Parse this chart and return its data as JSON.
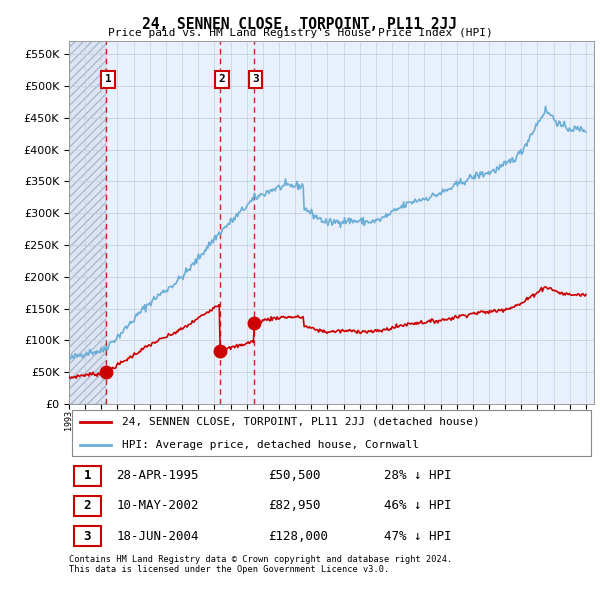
{
  "title": "24, SENNEN CLOSE, TORPOINT, PL11 2JJ",
  "subtitle": "Price paid vs. HM Land Registry's House Price Index (HPI)",
  "legend_line1": "24, SENNEN CLOSE, TORPOINT, PL11 2JJ (detached house)",
  "legend_line2": "HPI: Average price, detached house, Cornwall",
  "transactions": [
    {
      "num": 1,
      "date": "28-APR-1995",
      "price": 50500,
      "pct": "28%",
      "year": 1995.32
    },
    {
      "num": 2,
      "date": "10-MAY-2002",
      "price": 82950,
      "pct": "46%",
      "year": 2002.36
    },
    {
      "num": 3,
      "date": "18-JUN-2004",
      "price": 128000,
      "pct": "47%",
      "year": 2004.46
    }
  ],
  "footer_line1": "Contains HM Land Registry data © Crown copyright and database right 2024.",
  "footer_line2": "This data is licensed under the Open Government Licence v3.0.",
  "hpi_color": "#6baed6",
  "price_color": "#cc0000",
  "dot_color": "#cc0000",
  "vline_color": "#cc0000",
  "ylim": [
    0,
    570000
  ],
  "yticks": [
    0,
    50000,
    100000,
    150000,
    200000,
    250000,
    300000,
    350000,
    400000,
    450000,
    500000,
    550000
  ],
  "grid_color": "#cccccc"
}
